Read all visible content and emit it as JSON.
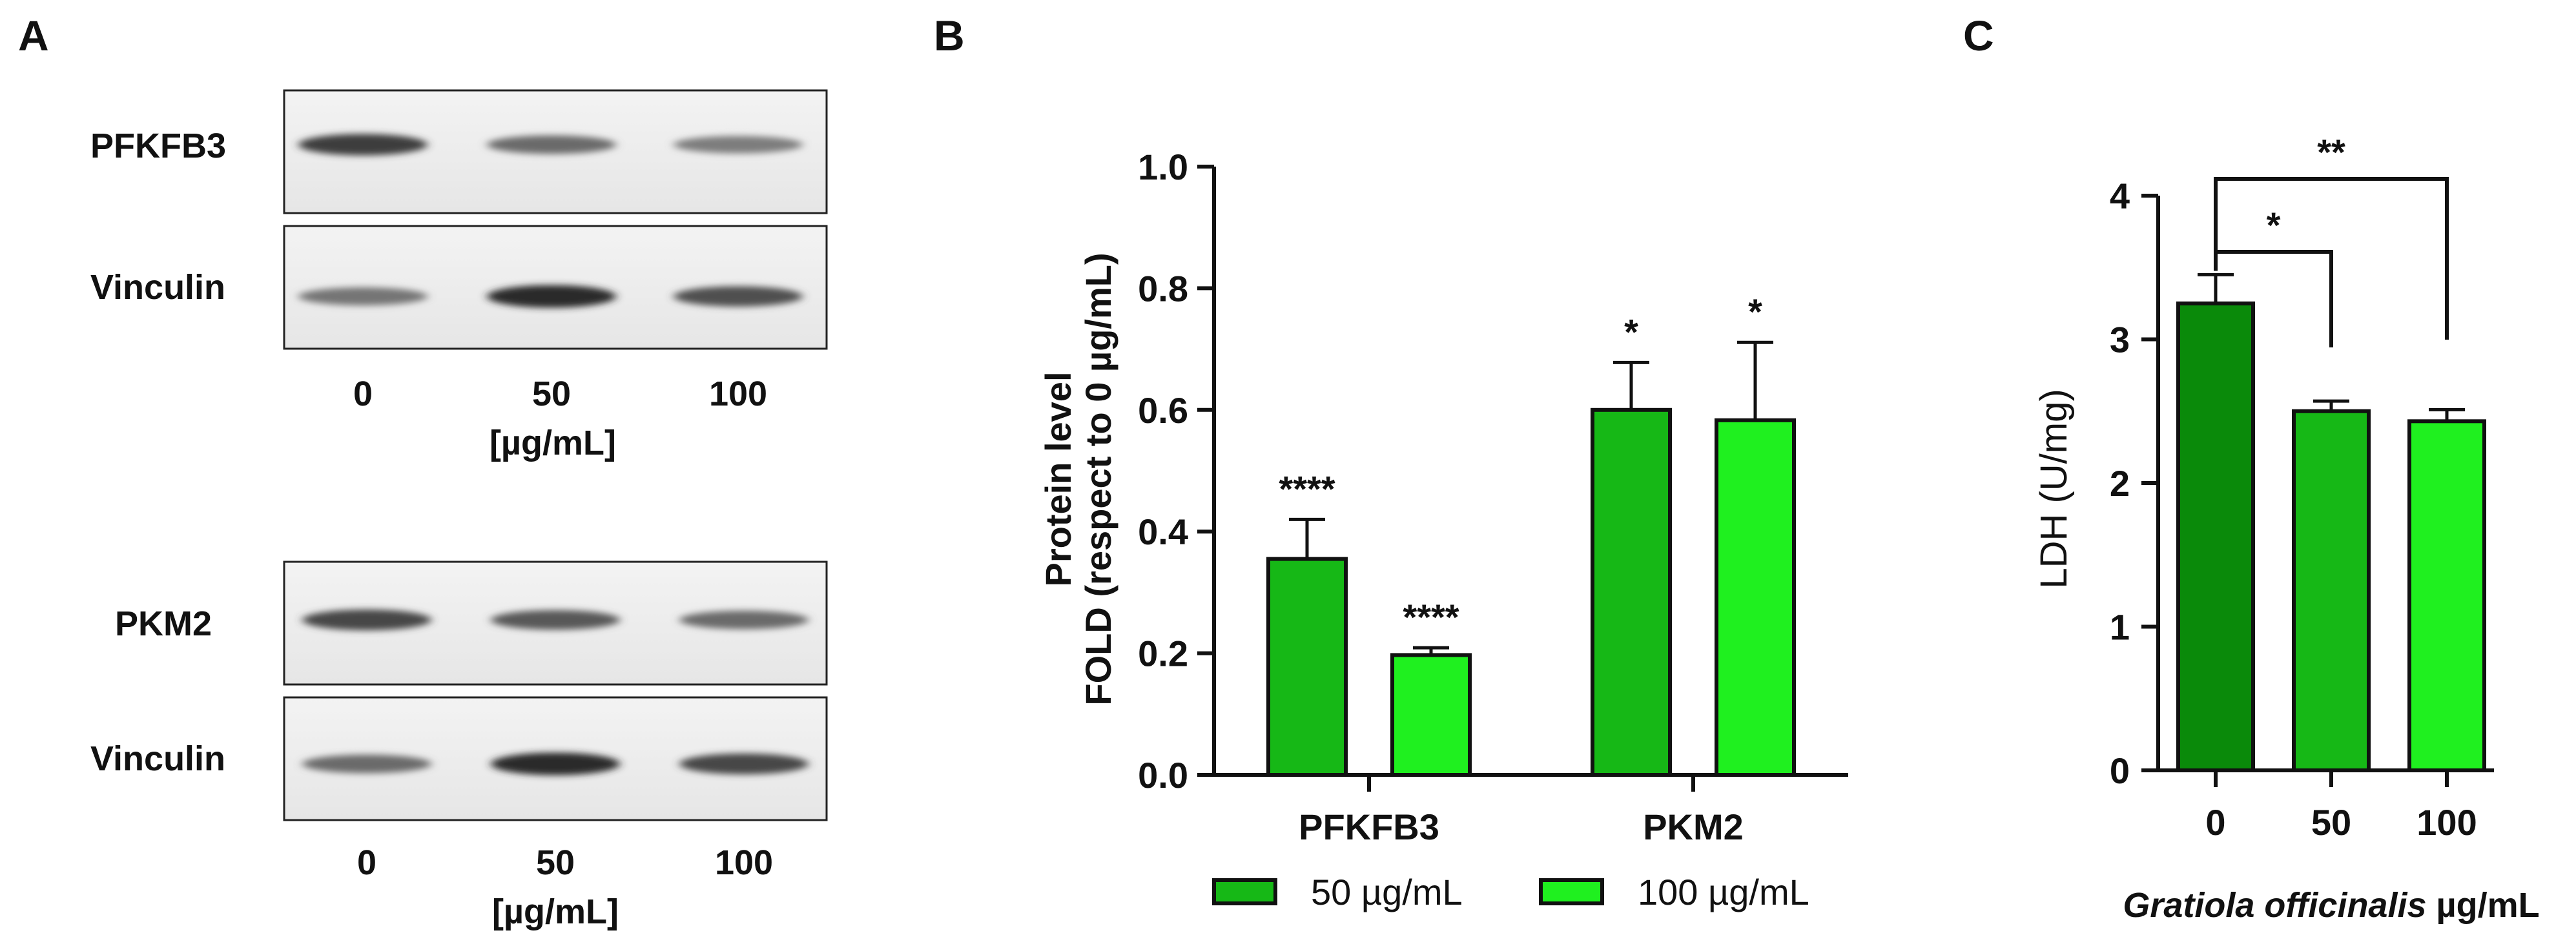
{
  "panels": {
    "a": "A",
    "b": "B",
    "c": "C"
  },
  "blots": {
    "top": {
      "band1_label": "PFKFB3",
      "band2_label": "Vinculin",
      "lanes": [
        "0",
        "50",
        "100"
      ],
      "unit": "[µg/mL]",
      "band1_intensity": [
        0.85,
        0.6,
        0.5
      ],
      "band2_intensity": [
        0.55,
        0.95,
        0.75
      ]
    },
    "bottom": {
      "band1_label": "PKM2",
      "band2_label": "Vinculin",
      "lanes": [
        "0",
        "50",
        "100"
      ],
      "unit": "[µg/mL]",
      "band1_intensity": [
        0.8,
        0.7,
        0.6
      ],
      "band2_intensity": [
        0.6,
        0.95,
        0.8
      ]
    }
  },
  "colors": {
    "dark_green": "#0a8a0a",
    "mid_green": "#16b816",
    "light_green": "#1ff01f",
    "axis": "#111111"
  },
  "chart_data": [
    {
      "type": "bar",
      "ylabel_line1": "Protein level",
      "ylabel_line2": "FOLD (respect to 0 µg/mL)",
      "categories": [
        "PFKFB3",
        "PKM2"
      ],
      "series": [
        {
          "name": "50 µg/mL",
          "values": [
            0.355,
            0.6
          ],
          "errors": [
            0.065,
            0.078
          ],
          "significance": [
            "****",
            "*"
          ]
        },
        {
          "name": "100 µg/mL",
          "values": [
            0.197,
            0.583
          ],
          "errors": [
            0.012,
            0.128
          ],
          "significance": [
            "****",
            "*"
          ]
        }
      ],
      "ylim": [
        0,
        1.0
      ],
      "yticks": [
        "0.0",
        "0.2",
        "0.4",
        "0.6",
        "0.8",
        "1.0"
      ],
      "legend": "bottom"
    },
    {
      "type": "bar",
      "ylabel": "LDH (U/mg)",
      "xlabel_italic": "Gratiola officinalis",
      "xlabel_unit": " µg/mL",
      "categories": [
        "0",
        "50",
        "100"
      ],
      "values": [
        3.25,
        2.5,
        2.43
      ],
      "errors": [
        0.2,
        0.07,
        0.08
      ],
      "ylim": [
        0,
        4
      ],
      "yticks": [
        "0",
        "1",
        "2",
        "3",
        "4"
      ],
      "brackets": [
        {
          "from": 0,
          "to": 1,
          "label": "*"
        },
        {
          "from": 0,
          "to": 2,
          "label": "**"
        }
      ]
    }
  ]
}
